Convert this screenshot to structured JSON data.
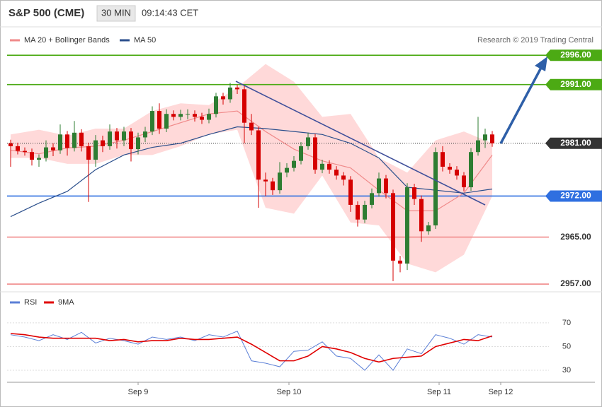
{
  "header": {
    "title": "S&P 500 (CME)",
    "interval": "30 MIN",
    "time": "09:14:43 CET"
  },
  "copyright": "Research © 2019 Trading Central",
  "chart_data": [
    {
      "type": "candlestick",
      "x": [
        0,
        1,
        2,
        3,
        4,
        5,
        6,
        7,
        8,
        9,
        10,
        11,
        12,
        13,
        14,
        15,
        16,
        17,
        18,
        19,
        20,
        21,
        22,
        23,
        24,
        25,
        26,
        27,
        28,
        29,
        30,
        31,
        32,
        33,
        34,
        35,
        36,
        37,
        38,
        39,
        40,
        41,
        42,
        43,
        44,
        45,
        46,
        47,
        48,
        49,
        50,
        51,
        52,
        53,
        54,
        55,
        56,
        57,
        58,
        59,
        60,
        61,
        62,
        63,
        64,
        65,
        66,
        67,
        68
      ],
      "candles": [
        [
          2981,
          2981.6,
          2977,
          2980.5
        ],
        [
          2980.5,
          2981.1,
          2979.1,
          2979.7
        ],
        [
          2979.7,
          2980.3,
          2978.9,
          2979.5
        ],
        [
          2979.5,
          2980.1,
          2977.2,
          2978.2
        ],
        [
          2978.2,
          2979.1,
          2977,
          2978.5
        ],
        [
          2978.5,
          2981.5,
          2977.9,
          2980.3
        ],
        [
          2980.3,
          2981,
          2978.8,
          2979.8
        ],
        [
          2979.8,
          2984.2,
          2979.2,
          2982.5
        ],
        [
          2982.5,
          2983.1,
          2978.9,
          2980.2
        ],
        [
          2980.2,
          2984.8,
          2979.6,
          2982.8
        ],
        [
          2982.8,
          2983.4,
          2979.6,
          2980.5
        ],
        [
          2980.5,
          2981.1,
          2971,
          2978.2
        ],
        [
          2978.2,
          2982.4,
          2977,
          2981.5
        ],
        [
          2981.5,
          2982.3,
          2979.5,
          2980.5
        ],
        [
          2980.5,
          2984.2,
          2979.9,
          2983
        ],
        [
          2983,
          2983.6,
          2980.1,
          2981.5
        ],
        [
          2981.5,
          2983.8,
          2980.5,
          2983
        ],
        [
          2983,
          2983.6,
          2977.9,
          2980
        ],
        [
          2980,
          2982.8,
          2979.1,
          2982
        ],
        [
          2982,
          2983.8,
          2981.2,
          2983
        ],
        [
          2983,
          2987.3,
          2982.4,
          2986.5
        ],
        [
          2986.5,
          2987.8,
          2982.6,
          2983.5
        ],
        [
          2983.5,
          2986.8,
          2982.9,
          2986
        ],
        [
          2986,
          2986.6,
          2984.9,
          2985.5
        ],
        [
          2985.5,
          2986.7,
          2984.9,
          2986
        ],
        [
          2986,
          2986.8,
          2985.1,
          2986
        ],
        [
          2986,
          2986.6,
          2984.7,
          2985.5
        ],
        [
          2985.5,
          2986.2,
          2984.3,
          2985
        ],
        [
          2985,
          2986.9,
          2984.4,
          2986
        ],
        [
          2986,
          2989.6,
          2985.4,
          2989
        ],
        [
          2989,
          2989.6,
          2987.6,
          2988.5
        ],
        [
          2988.5,
          2991.3,
          2987.9,
          2990.5
        ],
        [
          2990.5,
          2991,
          2989.4,
          2990.2
        ],
        [
          2990.2,
          2990.8,
          2981,
          2984.5
        ],
        [
          2984.5,
          2986,
          2982.4,
          2983.2
        ],
        [
          2983.2,
          2983.8,
          2970,
          2974.8
        ],
        [
          2974.8,
          2976,
          2972,
          2974.5
        ],
        [
          2974.5,
          2975.1,
          2972.2,
          2973
        ],
        [
          2973,
          2977.8,
          2972.4,
          2976
        ],
        [
          2976,
          2977.6,
          2975.2,
          2976.8
        ],
        [
          2976.8,
          2978.8,
          2976.2,
          2978
        ],
        [
          2978,
          2981.2,
          2977.4,
          2980.5
        ],
        [
          2980.5,
          2982.8,
          2979.9,
          2982
        ],
        [
          2982,
          2982.6,
          2975.8,
          2976.5
        ],
        [
          2976.5,
          2978.2,
          2975.9,
          2977.5
        ],
        [
          2977.5,
          2978.1,
          2975.8,
          2976.5
        ],
        [
          2976.5,
          2977.1,
          2974.8,
          2975.5
        ],
        [
          2975.5,
          2976.1,
          2973.8,
          2974.8
        ],
        [
          2974.8,
          2975.4,
          2969.3,
          2970.5
        ],
        [
          2970.5,
          2971.1,
          2966.8,
          2968
        ],
        [
          2968,
          2971.2,
          2967.4,
          2970.5
        ],
        [
          2970.5,
          2973.3,
          2969.9,
          2972.5
        ],
        [
          2972.5,
          2976,
          2971.9,
          2975
        ],
        [
          2975,
          2975.6,
          2971.6,
          2972.5
        ],
        [
          2972.5,
          2973.1,
          2957.5,
          2961
        ],
        [
          2961,
          2961.8,
          2959,
          2960.5
        ],
        [
          2960.5,
          2974.2,
          2959.4,
          2973.5
        ],
        [
          2973.5,
          2974.1,
          2970.5,
          2971.5
        ],
        [
          2971.5,
          2972.1,
          2964.2,
          2966
        ],
        [
          2966,
          2967.6,
          2965.4,
          2967
        ],
        [
          2967,
          2980.3,
          2966.4,
          2979.5
        ],
        [
          2979.5,
          2980.5,
          2976.2,
          2977
        ],
        [
          2977,
          2977.6,
          2975.8,
          2976.5
        ],
        [
          2976.5,
          2977.1,
          2974.8,
          2975.5
        ],
        [
          2975.5,
          2976.1,
          2972.8,
          2973.5
        ],
        [
          2973.5,
          2980.2,
          2972.9,
          2979.5
        ],
        [
          2979.5,
          2985.5,
          2978.9,
          2981.5
        ],
        [
          2981.5,
          2983.5,
          2980.2,
          2982.5
        ],
        [
          2982.5,
          2983.1,
          2980.4,
          2981
        ]
      ],
      "up_color": "#2e7d32",
      "down_color": "#d50000",
      "series": [
        {
          "name": "MA 20 + Bollinger Bands",
          "color": "#f08a8a",
          "band_color": "#ffd9d9",
          "x": [
            0,
            4,
            8,
            12,
            16,
            20,
            24,
            28,
            32,
            36,
            40,
            44,
            48,
            52,
            56,
            60,
            64,
            68
          ],
          "values": [
            2979.8,
            2979.2,
            2980.2,
            2980.5,
            2981.5,
            2983,
            2984.5,
            2986,
            2986.5,
            2983,
            2980,
            2978,
            2976.8,
            2973,
            2969.5,
            2969.5,
            2972.5,
            2979
          ],
          "upper": [
            2982.5,
            2983.3,
            2982.3,
            2983.5,
            2983.5,
            2986.5,
            2987.8,
            2987.5,
            2990.5,
            2994.5,
            2991.5,
            2985.5,
            2986,
            2978.5,
            2976,
            2981.5,
            2983,
            2981
          ],
          "lower": [
            2978.5,
            2978.5,
            2977.5,
            2977.5,
            2979,
            2979,
            2980.5,
            2982.5,
            2983.3,
            2970,
            2969,
            2975.5,
            2967.5,
            2967,
            2960.5,
            2959,
            2962,
            2972
          ]
        },
        {
          "name": "MA 50",
          "color": "#2b4f8c",
          "x": [
            0,
            4,
            8,
            12,
            16,
            20,
            24,
            28,
            32,
            36,
            40,
            44,
            48,
            52,
            56,
            60,
            64,
            68
          ],
          "values": [
            2968.5,
            2970.8,
            2972.8,
            2976.5,
            2979,
            2980.3,
            2981,
            2982.5,
            2983.8,
            2983.5,
            2983,
            2982.5,
            2981,
            2978.5,
            2973.5,
            2973,
            2972.5,
            2973.2
          ]
        }
      ],
      "levels": [
        {
          "value": 2996,
          "label": "2996.00",
          "color": "#4caa14",
          "box": true
        },
        {
          "value": 2991,
          "label": "2991.00",
          "color": "#4caa14",
          "box": true
        },
        {
          "value": 2981,
          "label": "2981.00",
          "color": "#333333",
          "box": true,
          "dotted": true
        },
        {
          "value": 2972,
          "label": "2972.00",
          "color": "#2f6fe0",
          "box": true
        },
        {
          "value": 2965,
          "label": "2965.00",
          "color": "#f08a8a",
          "box": false
        },
        {
          "value": 2957,
          "label": "2957.00",
          "color": "#f08a8a",
          "box": false
        }
      ],
      "xlim": [
        -0.5,
        76
      ],
      "ylim": [
        2955.8,
        3000.6
      ]
    },
    {
      "type": "line",
      "x": [
        0,
        2,
        4,
        6,
        8,
        10,
        12,
        14,
        16,
        18,
        20,
        22,
        24,
        26,
        28,
        30,
        32,
        34,
        36,
        38,
        40,
        42,
        44,
        46,
        48,
        50,
        52,
        54,
        56,
        58,
        60,
        62,
        64,
        66,
        68
      ],
      "series": [
        {
          "name": "RSI",
          "color": "#5b7fd6",
          "values": [
            60,
            58,
            55,
            60,
            56,
            62,
            53,
            57,
            55,
            52,
            58,
            56,
            58,
            55,
            60,
            58,
            63,
            38,
            36,
            33,
            46,
            47,
            54,
            42,
            40,
            30,
            43,
            30,
            48,
            44,
            60,
            57,
            52,
            60,
            58
          ]
        },
        {
          "name": "9MA",
          "color": "#e00000",
          "values": [
            61,
            60,
            58,
            57,
            57,
            57,
            57,
            55,
            56,
            54,
            55,
            55,
            57,
            56,
            56,
            57,
            58,
            52,
            45,
            38,
            38,
            42,
            50,
            48,
            45,
            40,
            37,
            40,
            41,
            42,
            50,
            53,
            56,
            55,
            59
          ]
        }
      ],
      "xlim": [
        -0.5,
        76
      ],
      "ylim": [
        20.5,
        89
      ],
      "yticks": [
        70,
        50,
        30
      ],
      "xticks": [
        {
          "value": 18,
          "label": "Sep 9"
        },
        {
          "value": 39.3,
          "label": "Sep 10"
        },
        {
          "value": 60.5,
          "label": "Sep 11"
        },
        {
          "value": 69.2,
          "label": "Sep 12"
        }
      ]
    }
  ]
}
